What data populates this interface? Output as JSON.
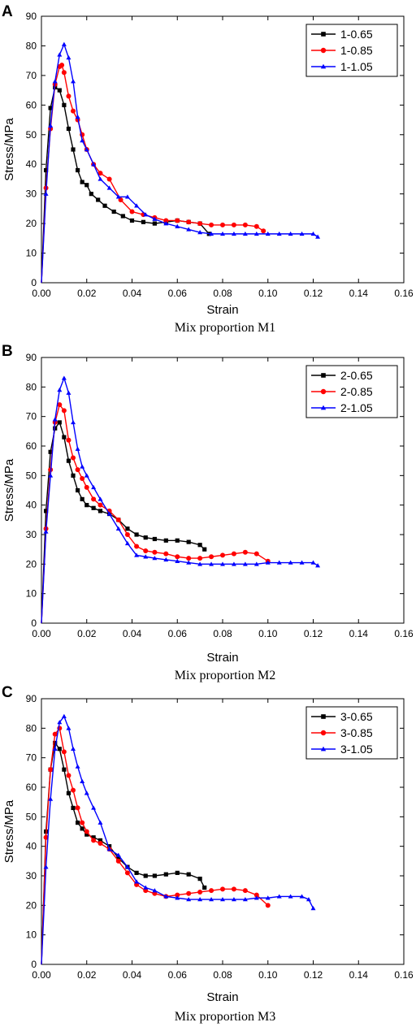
{
  "chart_data": [
    {
      "panel_letter": "A",
      "type": "line",
      "caption": "Mix proportion M1",
      "xlabel": "Strain",
      "ylabel": "Stress/MPa",
      "xlim": [
        0,
        0.16
      ],
      "ylim": [
        0,
        90
      ],
      "xticks": [
        0,
        0.02,
        0.04,
        0.06,
        0.08,
        0.1,
        0.12,
        0.14,
        0.16
      ],
      "xtick_labels": [
        "0.00",
        "0.02",
        "0.04",
        "0.06",
        "0.08",
        "0.10",
        "0.12",
        "0.14",
        "0.16"
      ],
      "yticks": [
        0,
        10,
        20,
        30,
        40,
        50,
        60,
        70,
        80,
        90
      ],
      "ytick_labels": [
        "0",
        "10",
        "20",
        "30",
        "40",
        "50",
        "60",
        "70",
        "80",
        "90"
      ],
      "grid": false,
      "legend_position": "top-right",
      "series": [
        {
          "name": "1-0.65",
          "color": "#000000",
          "marker": "square",
          "x": [
            0,
            0.002,
            0.004,
            0.006,
            0.008,
            0.01,
            0.012,
            0.014,
            0.016,
            0.018,
            0.02,
            0.022,
            0.025,
            0.028,
            0.032,
            0.036,
            0.04,
            0.045,
            0.05,
            0.055,
            0.06,
            0.065,
            0.07,
            0.074
          ],
          "y": [
            0,
            38,
            59,
            66,
            65,
            60,
            52,
            45,
            38,
            34,
            33,
            30,
            28,
            26,
            24,
            22.5,
            21,
            20.5,
            20,
            20.5,
            21,
            20.5,
            20,
            16.5
          ]
        },
        {
          "name": "1-0.85",
          "color": "#ff0000",
          "marker": "circle",
          "x": [
            0,
            0.002,
            0.004,
            0.006,
            0.008,
            0.009,
            0.01,
            0.012,
            0.014,
            0.016,
            0.018,
            0.02,
            0.023,
            0.026,
            0.03,
            0.035,
            0.04,
            0.045,
            0.05,
            0.055,
            0.06,
            0.065,
            0.07,
            0.075,
            0.08,
            0.085,
            0.09,
            0.095,
            0.098
          ],
          "y": [
            0,
            32,
            52,
            67,
            73,
            73.5,
            71,
            63,
            58,
            55,
            50,
            45,
            40,
            37,
            35,
            28,
            24,
            23,
            22,
            21,
            21,
            20.5,
            20,
            19.5,
            19.5,
            19.5,
            19.5,
            19,
            17.5
          ]
        },
        {
          "name": "1-1.05",
          "color": "#0000ff",
          "marker": "triangle",
          "x": [
            0,
            0.002,
            0.004,
            0.006,
            0.008,
            0.01,
            0.012,
            0.014,
            0.016,
            0.018,
            0.02,
            0.023,
            0.026,
            0.03,
            0.034,
            0.038,
            0.042,
            0.046,
            0.05,
            0.055,
            0.06,
            0.065,
            0.07,
            0.075,
            0.08,
            0.085,
            0.09,
            0.095,
            0.1,
            0.105,
            0.11,
            0.115,
            0.12,
            0.122
          ],
          "y": [
            0,
            30,
            53,
            68,
            77,
            80.5,
            76,
            68,
            56,
            48,
            45,
            40,
            35,
            32,
            29,
            29,
            26,
            23,
            21.5,
            20,
            19,
            18,
            17,
            16.5,
            16.5,
            16.5,
            16.5,
            16.5,
            16.5,
            16.5,
            16.5,
            16.5,
            16.5,
            15.5
          ]
        }
      ]
    },
    {
      "panel_letter": "B",
      "type": "line",
      "caption": "Mix proportion M2",
      "xlabel": "Strain",
      "ylabel": "Stress/MPa",
      "xlim": [
        0,
        0.16
      ],
      "ylim": [
        0,
        90
      ],
      "xticks": [
        0,
        0.02,
        0.04,
        0.06,
        0.08,
        0.1,
        0.12,
        0.14,
        0.16
      ],
      "xtick_labels": [
        "0.00",
        "0.02",
        "0.04",
        "0.06",
        "0.08",
        "0.10",
        "0.12",
        "0.14",
        "0.16"
      ],
      "yticks": [
        0,
        10,
        20,
        30,
        40,
        50,
        60,
        70,
        80,
        90
      ],
      "ytick_labels": [
        "0",
        "10",
        "20",
        "30",
        "40",
        "50",
        "60",
        "70",
        "80",
        "90"
      ],
      "grid": false,
      "legend_position": "top-right",
      "series": [
        {
          "name": "2-0.65",
          "color": "#000000",
          "marker": "square",
          "x": [
            0,
            0.002,
            0.004,
            0.006,
            0.008,
            0.01,
            0.012,
            0.014,
            0.016,
            0.018,
            0.02,
            0.023,
            0.026,
            0.03,
            0.034,
            0.038,
            0.042,
            0.046,
            0.05,
            0.055,
            0.06,
            0.065,
            0.07,
            0.072
          ],
          "y": [
            0,
            38,
            58,
            66,
            68,
            63,
            55,
            50,
            45,
            42,
            40,
            39,
            38,
            37,
            35,
            32,
            30,
            29,
            28.5,
            28,
            28,
            27.5,
            26.5,
            25
          ]
        },
        {
          "name": "2-0.85",
          "color": "#ff0000",
          "marker": "circle",
          "x": [
            0,
            0.002,
            0.004,
            0.006,
            0.008,
            0.01,
            0.012,
            0.014,
            0.016,
            0.018,
            0.02,
            0.023,
            0.026,
            0.03,
            0.034,
            0.038,
            0.042,
            0.046,
            0.05,
            0.055,
            0.06,
            0.065,
            0.07,
            0.075,
            0.08,
            0.085,
            0.09,
            0.095,
            0.1
          ],
          "y": [
            0,
            32,
            52,
            68,
            74,
            72,
            62,
            56,
            52,
            49,
            46,
            42,
            40,
            38,
            35,
            30,
            26,
            24.5,
            24,
            23.5,
            22.5,
            22,
            22,
            22.5,
            23,
            23.5,
            24,
            23.5,
            21
          ]
        },
        {
          "name": "2-1.05",
          "color": "#0000ff",
          "marker": "triangle",
          "x": [
            0,
            0.002,
            0.004,
            0.006,
            0.008,
            0.01,
            0.012,
            0.014,
            0.016,
            0.018,
            0.02,
            0.023,
            0.026,
            0.03,
            0.034,
            0.038,
            0.042,
            0.046,
            0.05,
            0.055,
            0.06,
            0.065,
            0.07,
            0.075,
            0.08,
            0.085,
            0.09,
            0.095,
            0.1,
            0.105,
            0.11,
            0.115,
            0.12,
            0.122
          ],
          "y": [
            0,
            31,
            50,
            69,
            79,
            83,
            78,
            68,
            59,
            53,
            50,
            46,
            42,
            37,
            32,
            27,
            23,
            22.5,
            22,
            21.5,
            21,
            20.5,
            20,
            20,
            20,
            20,
            20,
            20,
            20.5,
            20.5,
            20.5,
            20.5,
            20.5,
            19.5
          ]
        }
      ]
    },
    {
      "panel_letter": "C",
      "type": "line",
      "caption": "Mix proportion M3",
      "xlabel": "Strain",
      "ylabel": "Stress/MPa",
      "xlim": [
        0,
        0.16
      ],
      "ylim": [
        0,
        90
      ],
      "xticks": [
        0,
        0.02,
        0.04,
        0.06,
        0.08,
        0.1,
        0.12,
        0.14,
        0.16
      ],
      "xtick_labels": [
        "0.00",
        "0.02",
        "0.04",
        "0.06",
        "0.08",
        "0.10",
        "0.12",
        "0.14",
        "0.16"
      ],
      "yticks": [
        0,
        10,
        20,
        30,
        40,
        50,
        60,
        70,
        80,
        90
      ],
      "ytick_labels": [
        "0",
        "10",
        "20",
        "30",
        "40",
        "50",
        "60",
        "70",
        "80",
        "90"
      ],
      "grid": false,
      "legend_position": "top-right",
      "series": [
        {
          "name": "3-0.65",
          "color": "#000000",
          "marker": "square",
          "x": [
            0,
            0.002,
            0.004,
            0.006,
            0.008,
            0.01,
            0.012,
            0.014,
            0.016,
            0.018,
            0.02,
            0.023,
            0.026,
            0.03,
            0.034,
            0.038,
            0.042,
            0.046,
            0.05,
            0.055,
            0.06,
            0.065,
            0.07,
            0.072
          ],
          "y": [
            0,
            45,
            66,
            75,
            73,
            66,
            58,
            53,
            48,
            46,
            44,
            43,
            42,
            40,
            36,
            33,
            31,
            30,
            30,
            30.5,
            31,
            30.5,
            29,
            26
          ]
        },
        {
          "name": "3-0.85",
          "color": "#ff0000",
          "marker": "circle",
          "x": [
            0,
            0.002,
            0.004,
            0.006,
            0.008,
            0.01,
            0.012,
            0.014,
            0.016,
            0.018,
            0.02,
            0.023,
            0.026,
            0.03,
            0.034,
            0.038,
            0.042,
            0.046,
            0.05,
            0.055,
            0.06,
            0.065,
            0.07,
            0.075,
            0.08,
            0.085,
            0.09,
            0.095,
            0.1
          ],
          "y": [
            0,
            43,
            66,
            78,
            80,
            72,
            64,
            59,
            53,
            48,
            45,
            42,
            41,
            39,
            35,
            31,
            27,
            25,
            24,
            23,
            23.5,
            24,
            24.5,
            25,
            25.5,
            25.5,
            25,
            23.5,
            20
          ]
        },
        {
          "name": "3-1.05",
          "color": "#0000ff",
          "marker": "triangle",
          "x": [
            0,
            0.002,
            0.004,
            0.006,
            0.008,
            0.01,
            0.012,
            0.014,
            0.016,
            0.018,
            0.02,
            0.023,
            0.026,
            0.03,
            0.034,
            0.038,
            0.042,
            0.046,
            0.05,
            0.055,
            0.06,
            0.065,
            0.07,
            0.075,
            0.08,
            0.085,
            0.09,
            0.095,
            0.1,
            0.105,
            0.11,
            0.115,
            0.118,
            0.12
          ],
          "y": [
            0,
            33,
            56,
            73,
            82,
            84,
            80,
            73,
            67,
            62,
            58,
            53,
            48,
            39,
            37,
            33,
            28,
            26,
            25,
            23,
            22.5,
            22,
            22,
            22,
            22,
            22,
            22,
            22.5,
            22.5,
            23,
            23,
            23,
            22,
            19
          ]
        }
      ]
    }
  ]
}
